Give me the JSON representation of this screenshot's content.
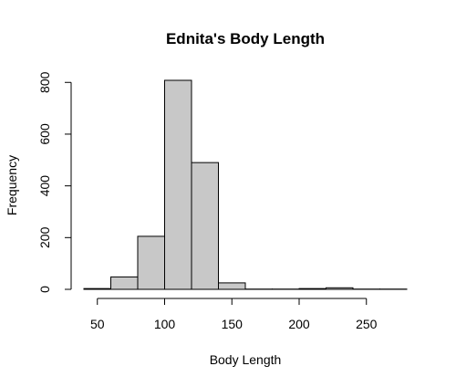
{
  "chart_data": {
    "type": "bar",
    "title": "Ednita's Body Length",
    "xlabel": "Body Length",
    "ylabel": "Frequency",
    "bins": [
      {
        "start": 40,
        "end": 60,
        "count": 3
      },
      {
        "start": 60,
        "end": 80,
        "count": 48
      },
      {
        "start": 80,
        "end": 100,
        "count": 205
      },
      {
        "start": 100,
        "end": 120,
        "count": 808
      },
      {
        "start": 120,
        "end": 140,
        "count": 490
      },
      {
        "start": 140,
        "end": 160,
        "count": 25
      },
      {
        "start": 160,
        "end": 180,
        "count": 1
      },
      {
        "start": 180,
        "end": 200,
        "count": 1
      },
      {
        "start": 200,
        "end": 220,
        "count": 3
      },
      {
        "start": 220,
        "end": 240,
        "count": 6
      },
      {
        "start": 240,
        "end": 260,
        "count": 1
      },
      {
        "start": 260,
        "end": 280,
        "count": 1
      }
    ],
    "xticks": [
      50,
      100,
      150,
      200,
      250
    ],
    "yticks": [
      0,
      200,
      400,
      600,
      800
    ],
    "xlim": [
      40,
      280
    ],
    "ylim": [
      0,
      808
    ],
    "grid": false,
    "bar_fill": "#c8c8c8",
    "bar_edge": "#000000"
  }
}
